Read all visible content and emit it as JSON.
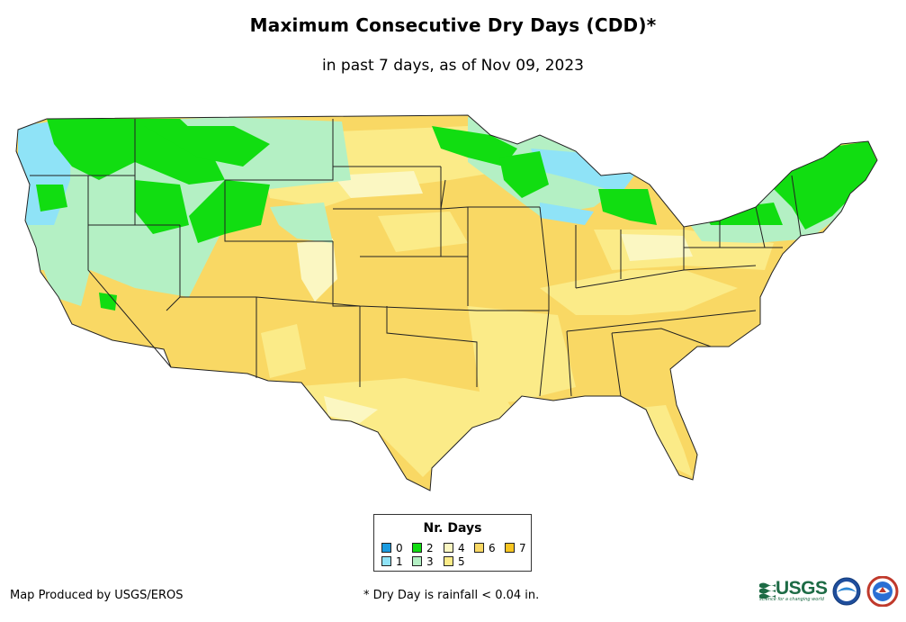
{
  "title": "Maximum Consecutive Dry Days (CDD)*",
  "subtitle": "in past 7 days, as of Nov 09, 2023",
  "legend": {
    "title": "Nr. Days",
    "items": [
      {
        "label": "0",
        "color": "#1a9be0"
      },
      {
        "label": "1",
        "color": "#8fe3f7"
      },
      {
        "label": "2",
        "color": "#11dd11"
      },
      {
        "label": "3",
        "color": "#b4f0c4"
      },
      {
        "label": "4",
        "color": "#fbf7c2"
      },
      {
        "label": "5",
        "color": "#fbeb88"
      },
      {
        "label": "6",
        "color": "#f9d864"
      },
      {
        "label": "7",
        "color": "#f7c522"
      }
    ]
  },
  "footer": {
    "credit": "Map Produced by USGS/EROS",
    "note": "* Dry Day is rainfall < 0.04 in."
  },
  "logos": {
    "usgs": "USGS",
    "usgs_tagline": "science for a changing world"
  }
}
